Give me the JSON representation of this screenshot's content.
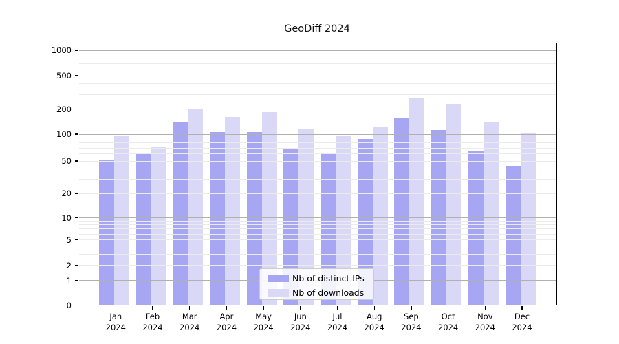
{
  "title": "GeoDiff 2024",
  "chart_data": {
    "type": "bar",
    "title": "GeoDiff 2024",
    "categories": [
      "Jan 2024",
      "Feb 2024",
      "Mar 2024",
      "Apr 2024",
      "May 2024",
      "Jun 2024",
      "Jul 2024",
      "Aug 2024",
      "Sep 2024",
      "Oct 2024",
      "Nov 2024",
      "Dec 2024"
    ],
    "series": [
      {
        "name": "Nb of distinct IPs",
        "color": "#a6a6f2",
        "values": [
          51,
          60,
          140,
          106,
          105,
          68,
          60,
          88,
          158,
          112,
          65,
          43
        ]
      },
      {
        "name": "Nb of downloads",
        "color": "#d9d9f7",
        "values": [
          95,
          72,
          200,
          160,
          185,
          115,
          96,
          122,
          270,
          230,
          140,
          102
        ]
      }
    ],
    "yticks": [
      0,
      1,
      2,
      5,
      10,
      20,
      50,
      100,
      200,
      500,
      1000
    ],
    "ylim": [
      0,
      1000
    ],
    "yscale": "log-like (asinh), linear near zero",
    "grid": true,
    "legend_position": "lower center",
    "colors": {
      "major_grid": "#b0b0b0",
      "minor_grid": "#ebebeb",
      "axis": "#000000",
      "background": "#ffffff"
    }
  }
}
